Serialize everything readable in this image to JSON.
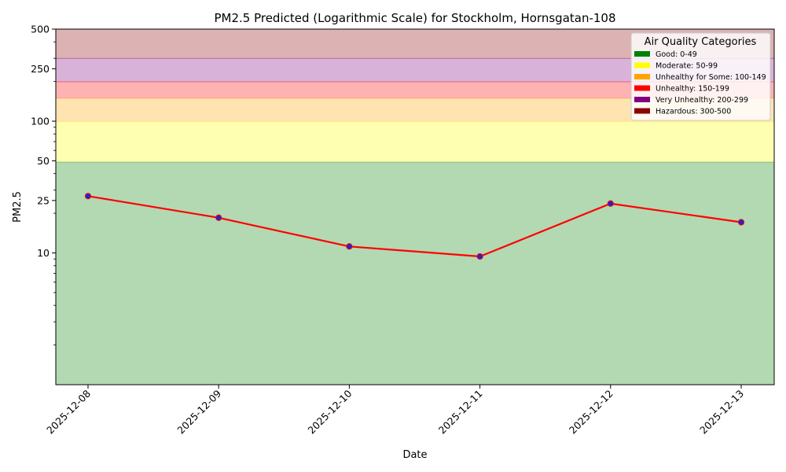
{
  "chart_data": {
    "type": "line",
    "title": "PM2.5 Predicted (Logarithmic Scale) for Stockholm, Hornsgatan-108",
    "xlabel": "Date",
    "ylabel": "PM2.5",
    "y_scale": "log",
    "ylim": [
      1,
      500
    ],
    "yticks": [
      10,
      25,
      50,
      100,
      250,
      500
    ],
    "x": [
      "2025-12-08",
      "2025-12-09",
      "2025-12-10",
      "2025-12-11",
      "2025-12-12",
      "2025-12-13"
    ],
    "series": [
      {
        "values": [
          27,
          18.5,
          11.2,
          9.4,
          23.7,
          17.1
        ],
        "line_color": "#ff0000",
        "marker_color": "#2323cc"
      }
    ],
    "bands": [
      {
        "label": "Good: 0-49",
        "from": 0,
        "to": 49,
        "color": "#008000"
      },
      {
        "label": "Moderate: 50-99",
        "from": 49,
        "to": 99,
        "color": "#ffff00"
      },
      {
        "label": "Unhealthy for Some: 100-149",
        "from": 99,
        "to": 149,
        "color": "#ffa500"
      },
      {
        "label": "Unhealthy: 150-199",
        "from": 149,
        "to": 199,
        "color": "#ff0000"
      },
      {
        "label": "Very Unhealthy: 200-299",
        "from": 199,
        "to": 299,
        "color": "#800080"
      },
      {
        "label": "Hazardous: 300-500",
        "from": 299,
        "to": 500,
        "color": "#8b0000"
      }
    ],
    "legend_title": "Air Quality Categories",
    "legend_position": "top-right",
    "grid": false
  }
}
